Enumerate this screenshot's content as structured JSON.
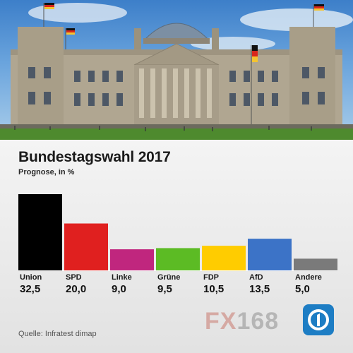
{
  "header": {
    "title": "Bundestagswahl 2017",
    "subtitle": "Prognose, in %"
  },
  "footer": {
    "source": "Quelle: Infratest dimap",
    "watermark_fx": "FX",
    "watermark_num": "168"
  },
  "icons": {
    "logo": "ard-1-logo-icon"
  },
  "chart_data": {
    "type": "bar",
    "title": "Bundestagswahl 2017",
    "subtitle": "Prognose, in %",
    "categories": [
      "Union",
      "SPD",
      "Linke",
      "Grüne",
      "FDP",
      "AfD",
      "Andere"
    ],
    "values": [
      32.5,
      20.0,
      9.0,
      9.5,
      10.5,
      13.5,
      5.0
    ],
    "value_labels": [
      "32,5",
      "20,0",
      "9,0",
      "9,5",
      "10,5",
      "13,5",
      "5,0"
    ],
    "colors": [
      "#000000",
      "#e0201f",
      "#c0267e",
      "#5cbb24",
      "#ffcc00",
      "#3c73c7",
      "#7a7a7a"
    ],
    "ylim": [
      0,
      32.5
    ],
    "grid": false,
    "legend": "none"
  }
}
